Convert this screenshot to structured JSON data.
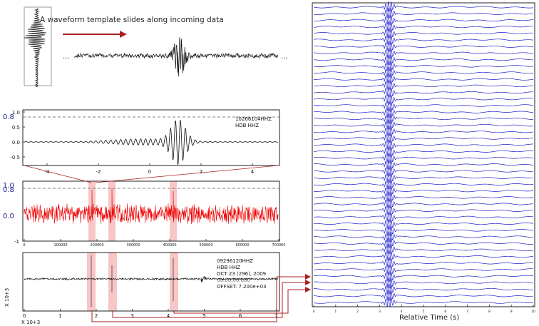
{
  "headline": "A waveform template slides along incoming data",
  "ellipsis": "...",
  "panel_template": {
    "id": "10266104HHZ",
    "station": "HDB HHZ",
    "yticks": [
      "1.0",
      "0.5",
      "0.0",
      "-0.5"
    ],
    "threshold_label": "0.8",
    "xticks": [
      "-4",
      "-2",
      "0",
      "2",
      "4"
    ]
  },
  "panel_cc": {
    "yticks_top": "1.0",
    "threshold_label": "0.8",
    "zero_label": "0.0",
    "ybottom": "-1",
    "xticks": [
      "0",
      "100000",
      "200000",
      "300000",
      "400000",
      "500000",
      "600000",
      "700000"
    ],
    "series_color": "#ee0000"
  },
  "panel_raw": {
    "id": "09296120HHZ",
    "station": "HDB HHZ",
    "date": "OCT 23 (296), 2009",
    "time_partial": "00:00:00.000",
    "offset": "OFFSET: 7.200e+03",
    "ylabel": "X 10+3",
    "xunit": "X 10+3",
    "xticks": [
      "0",
      "1",
      "2",
      "3",
      "4",
      "5",
      "6",
      "7"
    ]
  },
  "right_panel": {
    "xlabel": "Relative Time (s)",
    "xticks": [
      "0",
      "1",
      "2",
      "3",
      "4",
      "5",
      "6",
      "7",
      "8",
      "9",
      "10"
    ],
    "trace_color": "#2222cc",
    "trace_count": 46
  },
  "highlight_color": "#f7c6c6",
  "arrow_color": "#aa2222"
}
